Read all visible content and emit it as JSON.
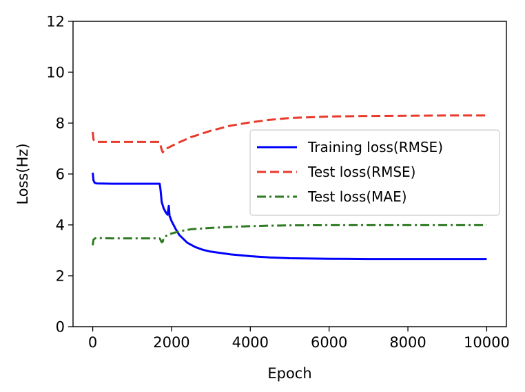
{
  "chart_data": {
    "type": "line",
    "xlabel": "Epoch",
    "ylabel": "Loss(Hz)",
    "xlim": [
      -500,
      10500
    ],
    "ylim": [
      0,
      12
    ],
    "xticks": [
      0,
      2000,
      4000,
      6000,
      8000,
      10000
    ],
    "yticks": [
      0,
      2,
      4,
      6,
      8,
      10,
      12
    ],
    "xtick_labels": [
      "0",
      "2000",
      "4000",
      "6000",
      "8000",
      "10000"
    ],
    "ytick_labels": [
      "0",
      "2",
      "4",
      "6",
      "8",
      "10",
      "12"
    ],
    "grid": false,
    "legend_position": "center-right",
    "series": [
      {
        "name": "Training loss(RMSE)",
        "color": "#0000ff",
        "style": "solid",
        "x": [
          0,
          20,
          50,
          100,
          500,
          1000,
          1500,
          1700,
          1720,
          1750,
          1800,
          1850,
          1900,
          1930,
          1950,
          1960,
          2000,
          2100,
          2200,
          2400,
          2600,
          2800,
          3000,
          3500,
          4000,
          4500,
          5000,
          6000,
          7000,
          8000,
          9000,
          10000
        ],
        "y": [
          6.05,
          5.75,
          5.65,
          5.63,
          5.62,
          5.62,
          5.62,
          5.62,
          5.4,
          4.9,
          4.65,
          4.5,
          4.4,
          4.75,
          4.35,
          4.32,
          4.15,
          3.85,
          3.6,
          3.3,
          3.13,
          3.02,
          2.95,
          2.84,
          2.77,
          2.72,
          2.69,
          2.67,
          2.66,
          2.66,
          2.66,
          2.66
        ]
      },
      {
        "name": "Test loss(RMSE)",
        "color": "#e8392b",
        "style": "dashed",
        "x": [
          0,
          20,
          60,
          100,
          500,
          1000,
          1500,
          1700,
          1750,
          1780,
          1800,
          1850,
          1900,
          2000,
          2200,
          2500,
          3000,
          3500,
          4000,
          4500,
          5000,
          6000,
          7000,
          8000,
          9000,
          10000
        ],
        "y": [
          7.65,
          7.35,
          7.27,
          7.26,
          7.26,
          7.26,
          7.26,
          7.26,
          6.95,
          6.85,
          6.92,
          6.97,
          7.02,
          7.1,
          7.25,
          7.45,
          7.7,
          7.9,
          8.03,
          8.13,
          8.2,
          8.26,
          8.28,
          8.29,
          8.3,
          8.3
        ]
      },
      {
        "name": "Test loss(MAE)",
        "color": "#2e7a22",
        "style": "dashdot",
        "x": [
          0,
          20,
          60,
          100,
          500,
          1000,
          1500,
          1700,
          1750,
          1780,
          1800,
          1850,
          1900,
          2000,
          2200,
          2500,
          3000,
          3500,
          4000,
          4500,
          5000,
          6000,
          7000,
          8000,
          9000,
          10000
        ],
        "y": [
          3.2,
          3.42,
          3.47,
          3.48,
          3.47,
          3.47,
          3.47,
          3.47,
          3.32,
          3.35,
          3.5,
          3.55,
          3.6,
          3.66,
          3.75,
          3.83,
          3.88,
          3.92,
          3.95,
          3.97,
          3.98,
          3.99,
          3.99,
          3.99,
          3.99,
          3.99
        ]
      }
    ]
  }
}
